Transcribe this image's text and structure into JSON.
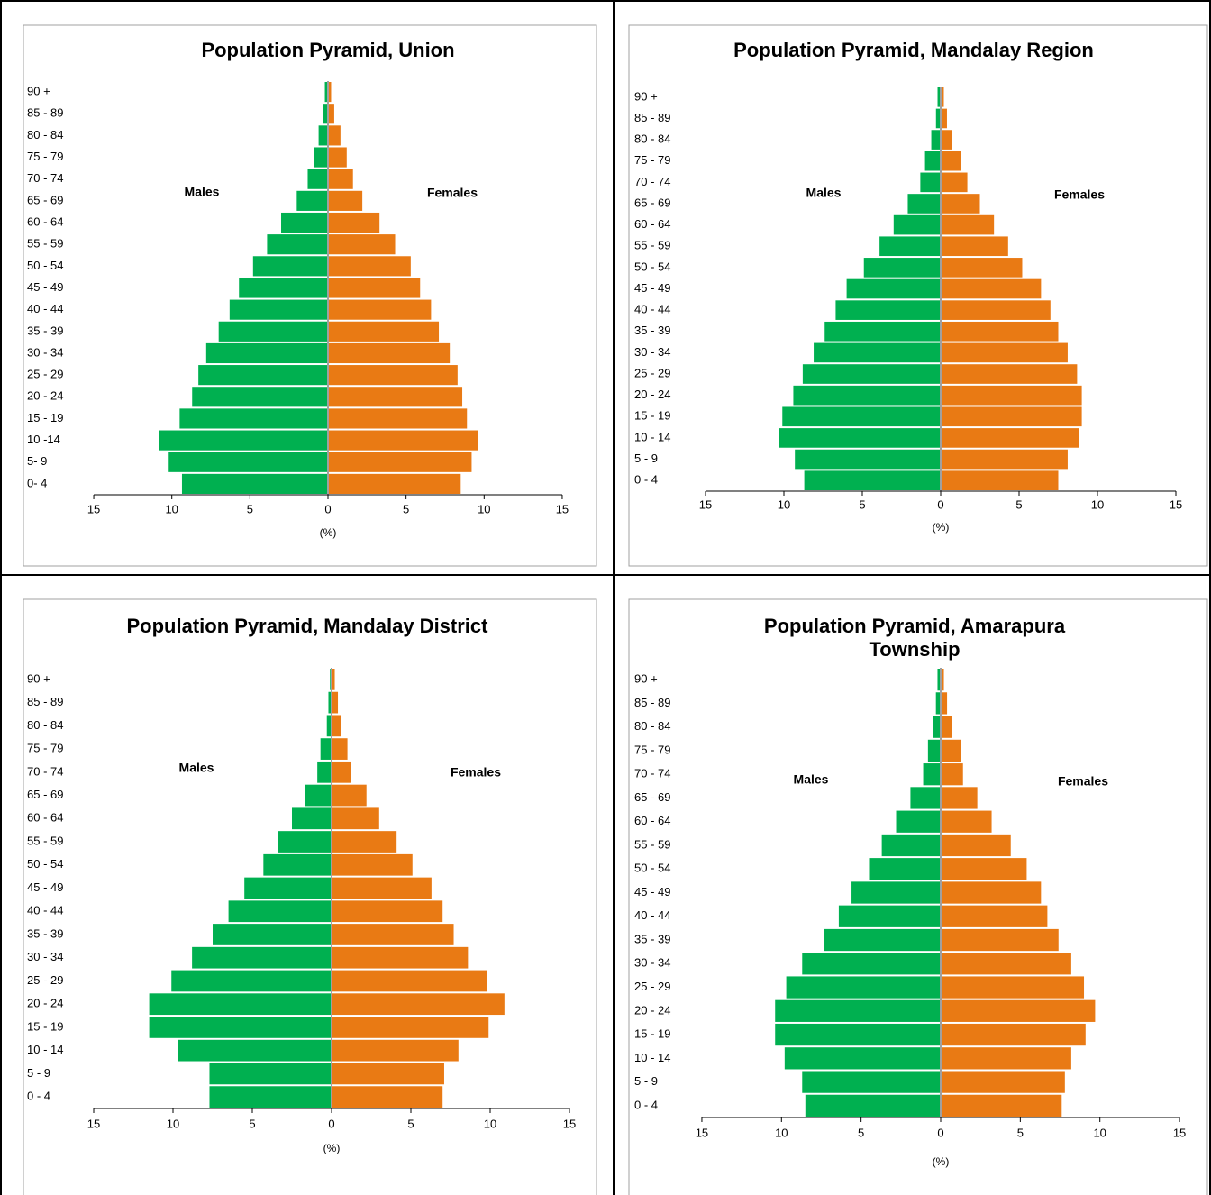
{
  "chart_data": [
    {
      "type": "pyramid",
      "title": "Population Pyramid, Union",
      "x_label": "(%)",
      "categories": [
        "0- 4",
        "5- 9",
        "10 -14",
        "15 - 19",
        "20 - 24",
        "25 - 29",
        "30 - 34",
        "35 - 39",
        "40 - 44",
        "45 - 49",
        "50 - 54",
        "55 - 59",
        "60 - 64",
        "65 - 69",
        "70 - 74",
        "75 - 79",
        "80 - 84",
        "85 - 89",
        "90 +"
      ],
      "series": [
        {
          "name": "Males",
          "color": "#00b050",
          "values": [
            -9.35,
            -10.2,
            -10.8,
            -9.5,
            -8.7,
            -8.3,
            -7.8,
            -7.0,
            -6.3,
            -5.7,
            -4.8,
            -3.9,
            -3.0,
            -2.0,
            -1.3,
            -0.9,
            -0.6,
            -0.3,
            -0.2
          ]
        },
        {
          "name": "Females",
          "color": "#e97a14",
          "values": [
            8.5,
            9.2,
            9.6,
            8.9,
            8.6,
            8.3,
            7.8,
            7.1,
            6.6,
            5.9,
            5.3,
            4.3,
            3.3,
            2.2,
            1.6,
            1.2,
            0.8,
            0.4,
            0.2
          ]
        }
      ],
      "xlim": [
        -15,
        15
      ],
      "xticks": [
        {
          "value": -15,
          "label": "15"
        },
        {
          "value": -10,
          "label": "10"
        },
        {
          "value": -5,
          "label": "5"
        },
        0,
        5,
        10,
        15
      ]
    },
    {
      "type": "pyramid",
      "title": "Population Pyramid, Mandalay Region",
      "x_label": "(%)",
      "categories": [
        "0 - 4",
        "5 - 9",
        "10 - 14",
        "15 - 19",
        "20 - 24",
        "25 - 29",
        "30 - 34",
        "35 - 39",
        "40 - 44",
        "45 - 49",
        "50 - 54",
        "55 - 59",
        "60 - 64",
        "65 - 69",
        "70 - 74",
        "75 - 79",
        "80 - 84",
        "85 - 89",
        "90 +"
      ],
      "series": [
        {
          "name": "Males",
          "color": "#00b050",
          "values": [
            -8.7,
            -9.3,
            -10.3,
            -10.1,
            -9.4,
            -8.8,
            -8.1,
            -7.4,
            -6.7,
            -6.0,
            -4.9,
            -3.9,
            -3.0,
            -2.1,
            -1.3,
            -1.0,
            -0.6,
            -0.3,
            -0.2
          ]
        },
        {
          "name": "Females",
          "color": "#e97a14",
          "values": [
            7.5,
            8.1,
            8.8,
            9.0,
            9.0,
            8.7,
            8.1,
            7.5,
            7.0,
            6.4,
            5.2,
            4.3,
            3.4,
            2.5,
            1.7,
            1.3,
            0.7,
            0.4,
            0.2
          ]
        }
      ],
      "xlim": [
        -15,
        15
      ],
      "xticks": [
        {
          "value": -15,
          "label": "15"
        },
        {
          "value": -10,
          "label": "10"
        },
        {
          "value": -5,
          "label": "5"
        },
        0,
        5,
        10,
        15
      ]
    },
    {
      "type": "pyramid",
      "title": "Population Pyramid, Mandalay District",
      "x_label": "(%)",
      "categories": [
        "0 - 4",
        "5 - 9",
        "10 - 14",
        "15 - 19",
        "20 - 24",
        "25 - 29",
        "30 - 34",
        "35 - 39",
        "40 - 44",
        "45 - 49",
        "50 - 54",
        "55 - 59",
        "60 - 64",
        "65 - 69",
        "70 - 74",
        "75 - 79",
        "80 - 84",
        "85 - 89",
        "90 +"
      ],
      "series": [
        {
          "name": "Males",
          "color": "#00b050",
          "values": [
            -7.7,
            -7.7,
            -9.7,
            -11.5,
            -11.5,
            -10.1,
            -8.8,
            -7.5,
            -6.5,
            -5.5,
            -4.3,
            -3.4,
            -2.5,
            -1.7,
            -0.9,
            -0.7,
            -0.3,
            -0.2,
            -0.1
          ]
        },
        {
          "name": "Females",
          "color": "#e97a14",
          "values": [
            7.0,
            7.1,
            8.0,
            9.9,
            10.9,
            9.8,
            8.6,
            7.7,
            7.0,
            6.3,
            5.1,
            4.1,
            3.0,
            2.2,
            1.2,
            1.0,
            0.6,
            0.4,
            0.2
          ]
        }
      ],
      "xlim": [
        -15,
        15
      ],
      "xticks": [
        {
          "value": -15,
          "label": "15"
        },
        {
          "value": -10,
          "label": "10"
        },
        {
          "value": -5,
          "label": "5"
        },
        0,
        5,
        10,
        15
      ]
    },
    {
      "type": "pyramid",
      "title": "Population Pyramid, Amarapura Township",
      "x_label": "(%)",
      "categories": [
        "0 - 4",
        "5 - 9",
        "10 - 14",
        "15 - 19",
        "20 - 24",
        "25 - 29",
        "30 - 34",
        "35 - 39",
        "40 - 44",
        "45 - 49",
        "50 - 54",
        "55 - 59",
        "60 - 64",
        "65 - 69",
        "70 - 74",
        "75 - 79",
        "80 - 84",
        "85 - 89",
        "90 +"
      ],
      "series": [
        {
          "name": "Males",
          "color": "#00b050",
          "values": [
            -8.5,
            -8.7,
            -9.8,
            -10.4,
            -10.4,
            -9.7,
            -8.7,
            -7.3,
            -6.4,
            -5.6,
            -4.5,
            -3.7,
            -2.8,
            -1.9,
            -1.1,
            -0.8,
            -0.5,
            -0.3,
            -0.2
          ]
        },
        {
          "name": "Females",
          "color": "#e97a14",
          "values": [
            7.6,
            7.8,
            8.2,
            9.1,
            9.7,
            9.0,
            8.2,
            7.4,
            6.7,
            6.3,
            5.4,
            4.4,
            3.2,
            2.3,
            1.4,
            1.3,
            0.7,
            0.4,
            0.2
          ]
        }
      ],
      "xlim": [
        -15,
        15
      ],
      "xticks": [
        {
          "value": -15,
          "label": "15"
        },
        {
          "value": -10,
          "label": "10"
        },
        {
          "value": -5,
          "label": "5"
        },
        0,
        5,
        10,
        15
      ]
    }
  ]
}
